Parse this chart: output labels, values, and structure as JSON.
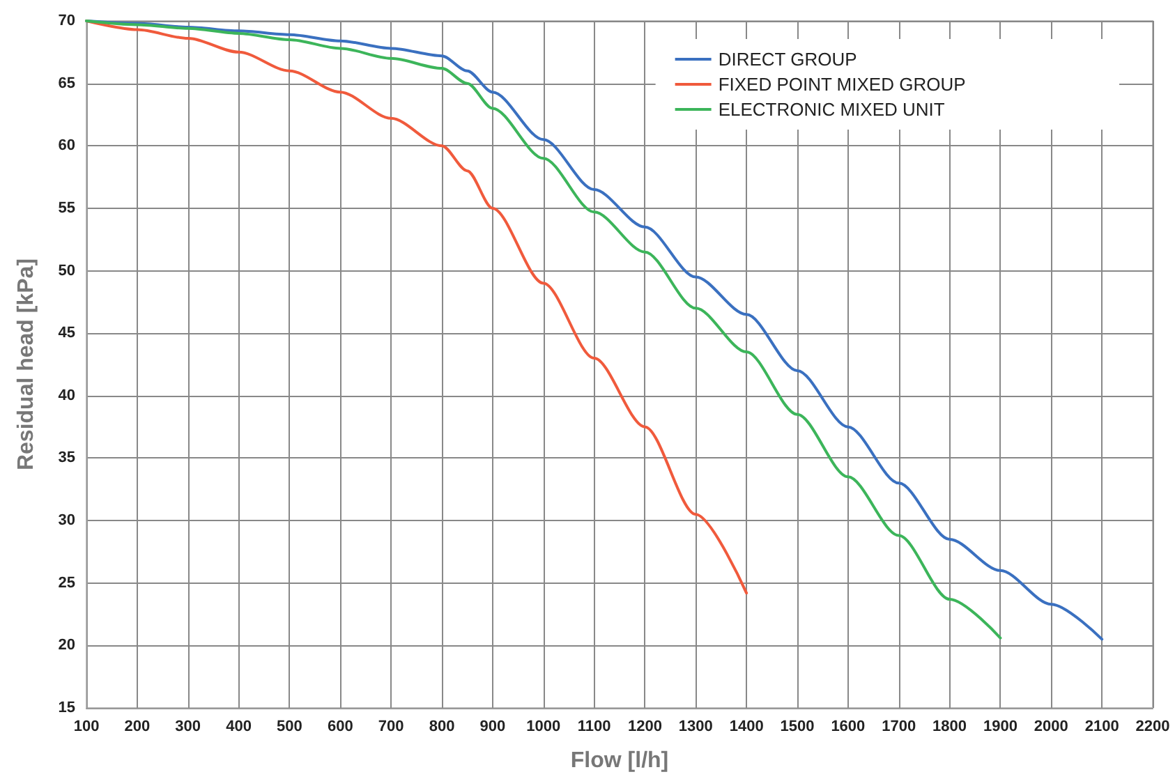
{
  "chart_data": {
    "type": "line",
    "xlabel": "Flow [l/h]",
    "ylabel": "Residual head [kPa]",
    "xlim": [
      100,
      2200
    ],
    "xticks": [
      100,
      200,
      300,
      400,
      500,
      600,
      700,
      800,
      900,
      1000,
      1100,
      1200,
      1300,
      1400,
      1500,
      1600,
      1700,
      1800,
      1900,
      2000,
      2100,
      2200
    ],
    "ylim": [
      15,
      70
    ],
    "yticks": [
      15,
      20,
      25,
      30,
      35,
      40,
      45,
      50,
      55,
      60,
      65,
      70
    ],
    "grid": true,
    "legend": "top right",
    "marker": "none",
    "line_style": "solid",
    "series": [
      {
        "name": "DIRECT GROUP",
        "color": "#3a70c0",
        "x": [
          100,
          200,
          300,
          400,
          500,
          600,
          700,
          800,
          850,
          900,
          1000,
          1100,
          1200,
          1300,
          1400,
          1500,
          1600,
          1700,
          1800,
          1900,
          2000,
          2100
        ],
        "values": [
          70,
          69.8,
          69.5,
          69.2,
          68.9,
          68.4,
          67.8,
          67.2,
          66,
          64.3,
          60.5,
          56.5,
          53.5,
          49.5,
          46.5,
          42,
          37.5,
          33,
          28.5,
          26,
          23.3,
          20.5
        ]
      },
      {
        "name": "FIXED POINT MIXED GROUP",
        "color": "#f05a3c",
        "x": [
          100,
          200,
          300,
          400,
          500,
          600,
          700,
          800,
          850,
          900,
          1000,
          1100,
          1200,
          1300,
          1400
        ],
        "values": [
          70,
          69.3,
          68.6,
          67.5,
          66,
          64.3,
          62.2,
          60,
          58,
          55,
          49,
          43,
          37.5,
          30.5,
          24.2
        ]
      },
      {
        "name": "ELECTRONIC MIXED UNIT",
        "color": "#3cb55a",
        "x": [
          100,
          200,
          300,
          400,
          500,
          600,
          700,
          800,
          850,
          900,
          1000,
          1100,
          1200,
          1300,
          1400,
          1500,
          1600,
          1700,
          1800,
          1900
        ],
        "values": [
          70,
          69.7,
          69.4,
          69,
          68.5,
          67.8,
          67,
          66.2,
          65,
          63,
          59,
          54.7,
          51.5,
          47,
          43.5,
          38.5,
          33.5,
          28.8,
          23.7,
          20.6
        ]
      }
    ]
  }
}
